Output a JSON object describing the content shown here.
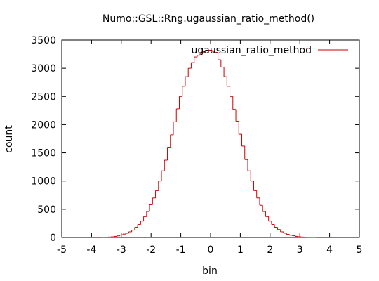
{
  "chart_data": {
    "type": "line",
    "render_style": "histogram-steps",
    "title": "Numo::GSL::Rng.ugaussian_ratio_method()",
    "xlabel": "bin",
    "ylabel": "count",
    "xlim": [
      -5,
      5
    ],
    "ylim": [
      0,
      3500
    ],
    "xticks": [
      -5,
      -4,
      -3,
      -2,
      -1,
      0,
      1,
      2,
      3,
      4,
      5
    ],
    "yticks": [
      0,
      500,
      1000,
      1500,
      2000,
      2500,
      3000,
      3500
    ],
    "grid": false,
    "legend": {
      "position": "top-right"
    },
    "colors": {
      "series": "#cc0000",
      "axes": "#000000",
      "background": "#ffffff"
    },
    "series": [
      {
        "name": "ugaussian_ratio_method",
        "bin_width": 0.1,
        "x": [
          -3.6,
          -3.5,
          -3.4,
          -3.3,
          -3.2,
          -3.1,
          -3.0,
          -2.9,
          -2.8,
          -2.7,
          -2.6,
          -2.5,
          -2.4,
          -2.3,
          -2.2,
          -2.1,
          -2.0,
          -1.9,
          -1.8,
          -1.7,
          -1.6,
          -1.5,
          -1.4,
          -1.3,
          -1.2,
          -1.1,
          -1.0,
          -0.9,
          -0.8,
          -0.7,
          -0.6,
          -0.5,
          -0.4,
          -0.3,
          -0.2,
          -0.1,
          0.0,
          0.1,
          0.2,
          0.3,
          0.4,
          0.5,
          0.6,
          0.7,
          0.8,
          0.9,
          1.0,
          1.1,
          1.2,
          1.3,
          1.4,
          1.5,
          1.6,
          1.7,
          1.8,
          1.9,
          2.0,
          2.1,
          2.2,
          2.3,
          2.4,
          2.5,
          2.6,
          2.7,
          2.8,
          2.9,
          3.0,
          3.1,
          3.2,
          3.3,
          3.4,
          3.5
        ],
        "values": [
          3,
          5,
          8,
          12,
          20,
          28,
          45,
          60,
          75,
          100,
          130,
          180,
          230,
          290,
          370,
          460,
          580,
          700,
          830,
          1000,
          1180,
          1370,
          1600,
          1820,
          2050,
          2280,
          2500,
          2680,
          2850,
          3000,
          3100,
          3200,
          3230,
          3280,
          3300,
          3310,
          3320,
          3300,
          3280,
          3150,
          3020,
          2850,
          2680,
          2500,
          2270,
          2060,
          1830,
          1620,
          1380,
          1180,
          1000,
          830,
          700,
          570,
          460,
          370,
          290,
          230,
          180,
          140,
          100,
          75,
          55,
          40,
          30,
          20,
          12,
          8,
          5,
          3,
          1,
          1
        ]
      }
    ]
  }
}
